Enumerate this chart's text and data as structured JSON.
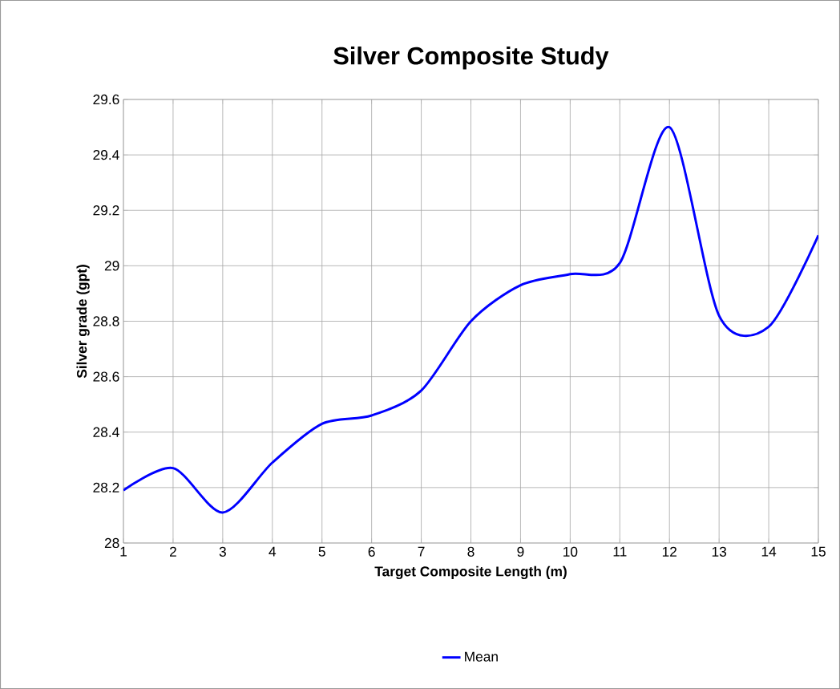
{
  "chart_data": {
    "type": "line",
    "title": "Silver Composite Study",
    "xlabel": "Target Composite Length (m)",
    "ylabel": "Silver grade (gpt)",
    "x": [
      1,
      2,
      3,
      4,
      5,
      6,
      7,
      8,
      9,
      10,
      11,
      12,
      13,
      14,
      15
    ],
    "series": [
      {
        "name": "Mean",
        "color": "#0000ff",
        "values": [
          28.19,
          28.27,
          28.11,
          28.29,
          28.43,
          28.46,
          28.55,
          28.8,
          28.93,
          28.97,
          29.01,
          29.5,
          28.82,
          28.78,
          29.11
        ]
      }
    ],
    "xlim": [
      1,
      15
    ],
    "xticks": [
      1,
      2,
      3,
      4,
      5,
      6,
      7,
      8,
      9,
      10,
      11,
      12,
      13,
      14,
      15
    ],
    "ylim": [
      28,
      29.6
    ],
    "yticks": [
      28,
      28.2,
      28.4,
      28.6,
      28.8,
      29,
      29.2,
      29.4,
      29.6
    ],
    "grid": true,
    "legend": "bottom",
    "marker": "none",
    "line_style": "solid"
  }
}
